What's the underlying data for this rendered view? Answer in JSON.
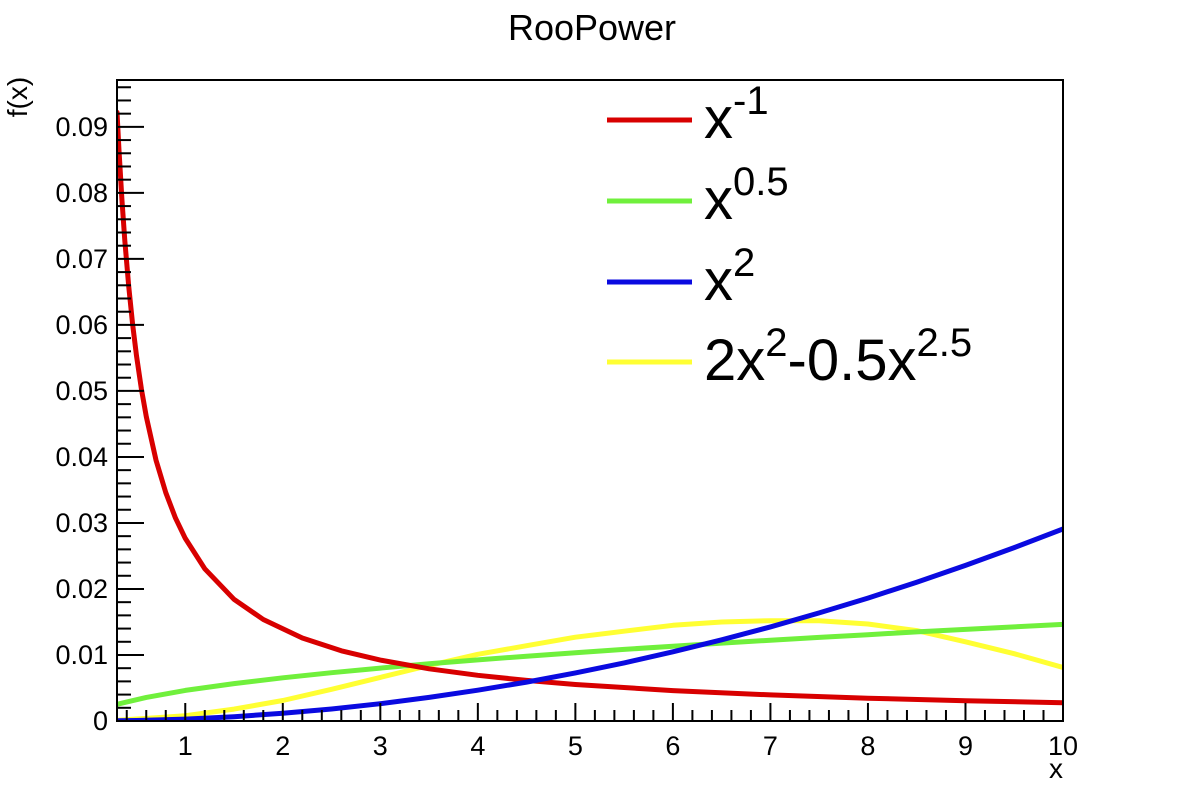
{
  "chart_data": {
    "type": "line",
    "title": "RooPower",
    "xlabel": "x",
    "ylabel": "f(x)",
    "xlim": [
      0.3,
      10
    ],
    "ylim": [
      0,
      0.0971
    ],
    "grid": false,
    "legend_position": "top-right-inside",
    "frame_color": "#000000",
    "x_tick_values": [
      1,
      2,
      3,
      4,
      5,
      6,
      7,
      8,
      9,
      10
    ],
    "x_tick_labels": [
      "1",
      "2",
      "3",
      "4",
      "5",
      "6",
      "7",
      "8",
      "9",
      "10"
    ],
    "x_minor_step": 0.2,
    "y_tick_values": [
      0,
      0.01,
      0.02,
      0.03,
      0.04,
      0.05,
      0.06,
      0.07,
      0.08,
      0.09
    ],
    "y_tick_labels": [
      "0",
      "0.01",
      "0.02",
      "0.03",
      "0.04",
      "0.05",
      "0.06",
      "0.07",
      "0.08",
      "0.09"
    ],
    "y_minor_step": 0.002,
    "series": [
      {
        "name": "2x^2-0.5x^2.5",
        "color": "#ffff33",
        "label_parts": [
          {
            "t": "2x"
          },
          {
            "t": "2",
            "sup": true
          },
          {
            "t": "-0.5x"
          },
          {
            "t": "2.5",
            "sup": true
          }
        ],
        "legend_order": 4,
        "points": [
          [
            0.3,
            0.0001
          ],
          [
            0.5,
            0.0003
          ],
          [
            0.7,
            0.0005
          ],
          [
            1,
            0.0008
          ],
          [
            1.5,
            0.0018
          ],
          [
            2,
            0.0031
          ],
          [
            2.5,
            0.0048
          ],
          [
            3,
            0.0066
          ],
          [
            3.5,
            0.0084
          ],
          [
            4,
            0.0101
          ],
          [
            4.5,
            0.0114
          ],
          [
            5,
            0.0127
          ],
          [
            5.5,
            0.0136
          ],
          [
            6,
            0.0145
          ],
          [
            6.5,
            0.015
          ],
          [
            7,
            0.0152
          ],
          [
            7.5,
            0.0152
          ],
          [
            8,
            0.0147
          ],
          [
            8.5,
            0.0137
          ],
          [
            9,
            0.012
          ],
          [
            9.5,
            0.0102
          ],
          [
            10,
            0.0081
          ]
        ]
      },
      {
        "name": "x^0.5",
        "color": "#70f03c",
        "label_parts": [
          {
            "t": "x"
          },
          {
            "t": "0.5",
            "sup": true
          }
        ],
        "legend_order": 2,
        "points": [
          [
            0.3,
            0.00253
          ],
          [
            0.6,
            0.00358
          ],
          [
            1,
            0.00463
          ],
          [
            1.5,
            0.00567
          ],
          [
            2,
            0.00654
          ],
          [
            2.5,
            0.00731
          ],
          [
            3,
            0.00801
          ],
          [
            3.5,
            0.00866
          ],
          [
            4,
            0.00925
          ],
          [
            4.5,
            0.00981
          ],
          [
            5,
            0.01034
          ],
          [
            5.5,
            0.01085
          ],
          [
            6,
            0.01133
          ],
          [
            6.5,
            0.0118
          ],
          [
            7,
            0.01224
          ],
          [
            7.5,
            0.01267
          ],
          [
            8,
            0.01308
          ],
          [
            8.5,
            0.01349
          ],
          [
            9,
            0.01388
          ],
          [
            9.5,
            0.01426
          ],
          [
            10,
            0.01463
          ]
        ]
      },
      {
        "name": "x^-1",
        "color": "#d80000",
        "label_parts": [
          {
            "t": "x"
          },
          {
            "t": "-1",
            "sup": true
          }
        ],
        "legend_order": 1,
        "points": [
          [
            0.3,
            0.09221
          ],
          [
            0.32,
            0.08644
          ],
          [
            0.35,
            0.07903
          ],
          [
            0.38,
            0.07279
          ],
          [
            0.42,
            0.06586
          ],
          [
            0.46,
            0.06013
          ],
          [
            0.5,
            0.05532
          ],
          [
            0.55,
            0.05029
          ],
          [
            0.6,
            0.0461
          ],
          [
            0.7,
            0.03952
          ],
          [
            0.8,
            0.03458
          ],
          [
            0.9,
            0.03074
          ],
          [
            1,
            0.02766
          ],
          [
            1.2,
            0.02305
          ],
          [
            1.5,
            0.01844
          ],
          [
            1.8,
            0.01537
          ],
          [
            2.2,
            0.01257
          ],
          [
            2.6,
            0.01064
          ],
          [
            3,
            0.00922
          ],
          [
            3.5,
            0.0079
          ],
          [
            4,
            0.00692
          ],
          [
            4.5,
            0.00615
          ],
          [
            5,
            0.00553
          ],
          [
            6,
            0.00461
          ],
          [
            7,
            0.00395
          ],
          [
            8,
            0.00346
          ],
          [
            9,
            0.00307
          ],
          [
            10,
            0.00277
          ]
        ]
      },
      {
        "name": "x^2",
        "color": "#0a0ae0",
        "label_parts": [
          {
            "t": "x"
          },
          {
            "t": "2",
            "sup": true
          }
        ],
        "legend_order": 3,
        "points": [
          [
            0.3,
            3e-05
          ],
          [
            0.5,
            7e-05
          ],
          [
            1,
            0.00029
          ],
          [
            1.5,
            0.00065
          ],
          [
            2,
            0.00116
          ],
          [
            2.5,
            0.00182
          ],
          [
            3,
            0.00262
          ],
          [
            3.5,
            0.00357
          ],
          [
            4,
            0.00466
          ],
          [
            4.5,
            0.00589
          ],
          [
            5,
            0.00728
          ],
          [
            5.5,
            0.0088
          ],
          [
            6,
            0.01048
          ],
          [
            6.5,
            0.0123
          ],
          [
            7,
            0.01426
          ],
          [
            7.5,
            0.01637
          ],
          [
            8,
            0.01862
          ],
          [
            8.5,
            0.02102
          ],
          [
            9,
            0.02357
          ],
          [
            9.5,
            0.02626
          ],
          [
            10,
            0.0291
          ]
        ]
      }
    ]
  }
}
